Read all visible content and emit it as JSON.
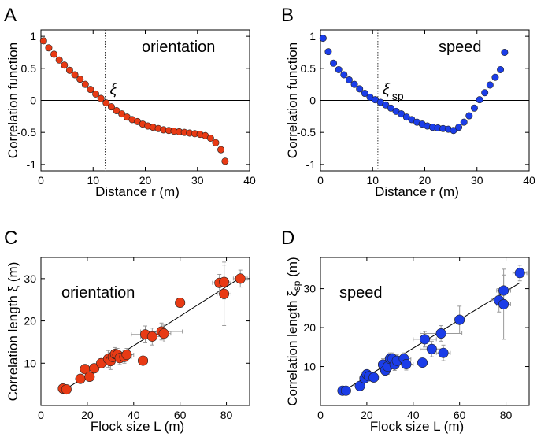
{
  "colors": {
    "red": "#e83a14",
    "blue": "#1b3de8",
    "axis": "#000000",
    "errorbar": "#9a9a9a"
  },
  "chart_data": [
    {
      "panel": "A",
      "type": "scatter",
      "annotation": "orientation",
      "marker_label": "ξ",
      "xlabel": "Distance  r (m)",
      "ylabel": "Correlation function",
      "xlim": [
        0,
        40
      ],
      "ylim": [
        -1.1,
        1.1
      ],
      "xticks": [
        0,
        10,
        20,
        30,
        40
      ],
      "yticks": [
        -1,
        -0.5,
        0,
        0.5,
        1
      ],
      "yticklabels": [
        "-1",
        "-0.5",
        "0",
        "0.5",
        "1"
      ],
      "vline_x": 12.3,
      "color": "red",
      "points": {
        "x": [
          0.5,
          1.5,
          2.5,
          3.5,
          4.5,
          5.5,
          6.5,
          7.5,
          8.5,
          9.5,
          10.5,
          11.5,
          12.5,
          13.5,
          14.5,
          15.5,
          16.5,
          17.5,
          18.5,
          19.5,
          20.5,
          21.5,
          22.5,
          23.5,
          24.5,
          25.5,
          26.5,
          27.5,
          28.5,
          29.5,
          30.5,
          31.5,
          32.5,
          33.5,
          34.5,
          35.3
        ],
        "y": [
          0.93,
          0.82,
          0.72,
          0.63,
          0.55,
          0.47,
          0.4,
          0.33,
          0.25,
          0.17,
          0.1,
          0.03,
          -0.04,
          -0.1,
          -0.16,
          -0.21,
          -0.26,
          -0.3,
          -0.33,
          -0.37,
          -0.4,
          -0.42,
          -0.44,
          -0.46,
          -0.47,
          -0.48,
          -0.49,
          -0.5,
          -0.51,
          -0.52,
          -0.53,
          -0.55,
          -0.59,
          -0.66,
          -0.77,
          -0.95
        ]
      }
    },
    {
      "panel": "B",
      "type": "scatter",
      "annotation": "speed",
      "marker_label": "ξ",
      "marker_sub": "sp",
      "xlabel": "Distance  r (m)",
      "ylabel": "Correlation function",
      "xlim": [
        0,
        40
      ],
      "ylim": [
        -1.1,
        1.1
      ],
      "xticks": [
        0,
        10,
        20,
        30,
        40
      ],
      "yticks": [
        -1,
        -0.5,
        0,
        0.5,
        1
      ],
      "yticklabels": [
        "-1",
        "-0.5",
        "0",
        "0.5",
        "1"
      ],
      "vline_x": 11.0,
      "color": "blue",
      "points": {
        "x": [
          0.5,
          1.5,
          2.5,
          3.5,
          4.5,
          5.5,
          6.5,
          7.5,
          8.5,
          9.5,
          10.5,
          11.5,
          12.5,
          13.5,
          14.5,
          15.5,
          16.5,
          17.5,
          18.5,
          19.5,
          20.5,
          21.5,
          22.5,
          23.5,
          24.5,
          25.5,
          26.5,
          27.5,
          28.5,
          29.5,
          30.5,
          31.5,
          32.5,
          33.5,
          34.5,
          35.3
        ],
        "y": [
          0.97,
          0.76,
          0.58,
          0.48,
          0.4,
          0.32,
          0.25,
          0.18,
          0.11,
          0.05,
          0.01,
          -0.03,
          -0.07,
          -0.12,
          -0.17,
          -0.21,
          -0.26,
          -0.3,
          -0.34,
          -0.37,
          -0.4,
          -0.42,
          -0.43,
          -0.44,
          -0.45,
          -0.47,
          -0.42,
          -0.34,
          -0.24,
          -0.12,
          0.01,
          0.12,
          0.24,
          0.36,
          0.48,
          0.75
        ]
      }
    },
    {
      "panel": "C",
      "type": "scatter",
      "annotation": "orientation",
      "xlabel": "Flock size L (m)",
      "ylabel": "Correlation length ξ  (m)",
      "xlim": [
        0,
        90
      ],
      "ylim": [
        0,
        35
      ],
      "xticks": [
        0,
        20,
        40,
        60,
        80
      ],
      "yticks": [
        10,
        20,
        30
      ],
      "color": "red",
      "fit": {
        "x": [
          9,
          86
        ],
        "y": [
          3.3,
          30.2
        ]
      },
      "points": {
        "x": [
          9.5,
          11,
          17,
          19,
          21,
          23,
          26,
          29,
          30,
          31,
          32,
          33,
          34,
          36,
          37,
          44,
          45,
          48,
          52,
          53,
          60,
          77,
          79,
          79,
          86
        ],
        "y": [
          4.0,
          3.8,
          6.3,
          8.6,
          6.8,
          8.8,
          10.0,
          11.0,
          10.5,
          11.5,
          12.2,
          12.0,
          11.2,
          11.5,
          12.0,
          10.6,
          16.8,
          16.3,
          17.5,
          17.0,
          24.3,
          29.0,
          26.4,
          29.2,
          30.0
        ],
        "xerr": [
          1,
          1,
          1,
          1,
          1,
          1,
          1,
          2,
          2,
          2,
          3,
          3,
          3,
          3,
          3,
          2,
          6,
          5,
          9,
          3,
          2,
          3,
          3,
          3,
          3
        ],
        "yerr": [
          0.3,
          0.3,
          0.4,
          0.5,
          0.5,
          0.5,
          0.8,
          2.0,
          2.0,
          1.5,
          1.5,
          1.5,
          1.5,
          1.5,
          1.5,
          0.8,
          2.0,
          2.0,
          2.0,
          2.0,
          0.5,
          2.0,
          7.5,
          4.0,
          2.0
        ]
      }
    },
    {
      "panel": "D",
      "type": "scatter",
      "annotation": "speed",
      "xlabel": "Flock size L (m)",
      "ylabel": "Correlation length ξ",
      "ylabel_sub": "sp",
      "ylabel_tail": "  (m)",
      "xlim": [
        0,
        90
      ],
      "ylim": [
        0,
        38
      ],
      "xticks": [
        0,
        20,
        40,
        60,
        80
      ],
      "yticks": [
        10,
        20,
        30
      ],
      "color": "blue",
      "fit": {
        "x": [
          9,
          86
        ],
        "y": [
          3.4,
          31.5
        ]
      },
      "points": {
        "x": [
          9.5,
          11,
          17,
          19,
          20,
          21,
          23,
          27,
          28,
          29,
          30,
          31,
          32,
          33,
          36,
          37,
          44,
          45,
          48,
          52,
          53,
          60,
          77,
          79,
          79,
          86
        ],
        "y": [
          3.8,
          3.8,
          5.0,
          7.0,
          8.0,
          7.5,
          7.2,
          10.5,
          9.0,
          10.0,
          12.0,
          12.0,
          10.5,
          11.5,
          12.0,
          10.6,
          11.0,
          17.0,
          14.5,
          18.5,
          13.5,
          22.0,
          27.0,
          26.0,
          29.5,
          34.0
        ],
        "xerr": [
          1,
          1,
          1,
          1,
          1,
          1,
          1,
          2,
          2,
          2,
          2,
          2,
          3,
          3,
          3,
          3,
          2,
          5,
          5,
          9,
          3,
          2,
          3,
          3,
          3,
          3
        ],
        "yerr": [
          0.3,
          0.3,
          0.5,
          0.6,
          0.6,
          0.6,
          0.6,
          1.5,
          1.2,
          2.0,
          1.5,
          1.5,
          1.5,
          1.5,
          1.5,
          1.5,
          1.0,
          2.0,
          2.0,
          2.0,
          2.0,
          3.5,
          3.0,
          9.0,
          4.0,
          2.0
        ]
      }
    }
  ]
}
